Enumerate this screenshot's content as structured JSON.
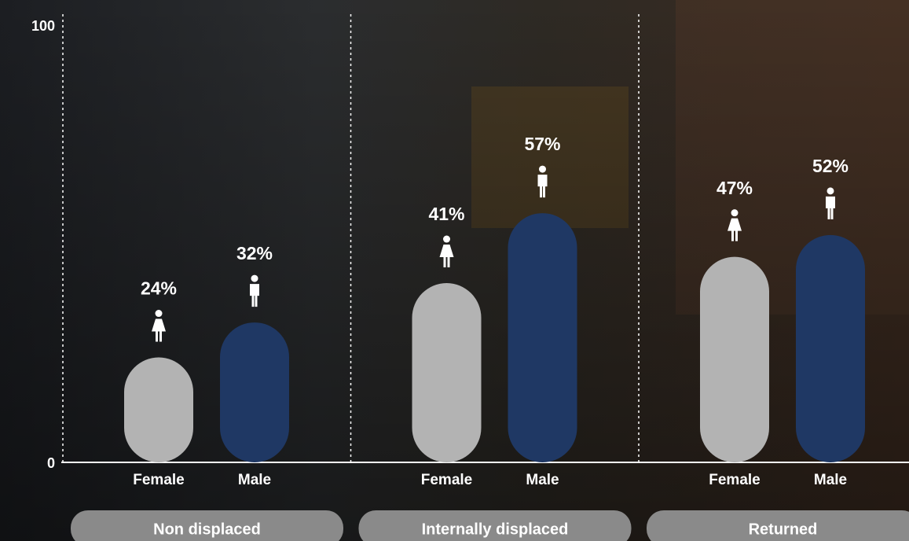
{
  "chart_data": {
    "type": "bar",
    "categories": [
      "Non displaced",
      "Internally displaced",
      "Returned"
    ],
    "series": [
      {
        "name": "Female",
        "color": "#b3b3b3",
        "values": [
          24,
          41,
          47
        ],
        "value_labels": [
          "24%",
          "41%",
          "47%"
        ]
      },
      {
        "name": "Male",
        "color": "#1f3864",
        "values": [
          32,
          57,
          52
        ],
        "value_labels": [
          "32%",
          "57%",
          "52%"
        ]
      }
    ],
    "ylim": [
      0,
      100
    ],
    "yticks": [
      0,
      100
    ]
  }
}
